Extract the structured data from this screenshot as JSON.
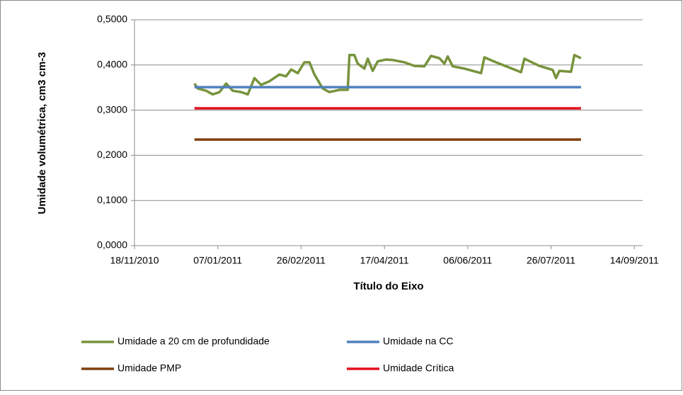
{
  "chart_data": {
    "type": "line",
    "y_label": "Umidade volumétrica, cm3 cm-3",
    "x_label": "Título do Eixo",
    "xlim": [
      "2010-11-18",
      "2011-09-19"
    ],
    "xticks": [
      {
        "value": "2010-11-18",
        "label": "18/11/2010"
      },
      {
        "value": "2011-01-07",
        "label": "07/01/2011"
      },
      {
        "value": "2011-02-26",
        "label": "26/02/2011"
      },
      {
        "value": "2011-04-17",
        "label": "17/04/2011"
      },
      {
        "value": "2011-06-06",
        "label": "06/06/2011"
      },
      {
        "value": "2011-07-26",
        "label": "26/07/2011"
      },
      {
        "value": "2011-09-14",
        "label": "14/09/2011"
      }
    ],
    "ylim": [
      0,
      0.5
    ],
    "yticks": [
      {
        "value": 0,
        "label": "0,0000"
      },
      {
        "value": 0.1,
        "label": "0,1000"
      },
      {
        "value": 0.2,
        "label": "0,2000"
      },
      {
        "value": 0.3,
        "label": "0,3000"
      },
      {
        "value": 0.4,
        "label": "0,4000"
      },
      {
        "value": 0.5,
        "label": "0,5000"
      }
    ],
    "grid": true,
    "legend": "bottom",
    "series": [
      {
        "name": "Umidade a 20 cm de profundidade",
        "color": "#77933c",
        "x": [
          "2010-12-24",
          "2010-12-26",
          "2010-12-31",
          "2011-01-04",
          "2011-01-08",
          "2011-01-12",
          "2011-01-16",
          "2011-01-21",
          "2011-01-25",
          "2011-01-29",
          "2011-02-02",
          "2011-02-07",
          "2011-02-13",
          "2011-02-17",
          "2011-02-20",
          "2011-02-24",
          "2011-02-28",
          "2011-03-03",
          "2011-03-06",
          "2011-03-11",
          "2011-03-15",
          "2011-03-21",
          "2011-03-26",
          "2011-03-27",
          "2011-03-30",
          "2011-04-01",
          "2011-04-05",
          "2011-04-07",
          "2011-04-10",
          "2011-04-13",
          "2011-04-18",
          "2011-04-22",
          "2011-04-29",
          "2011-05-05",
          "2011-05-11",
          "2011-05-15",
          "2011-05-20",
          "2011-05-23",
          "2011-05-25",
          "2011-05-28",
          "2011-06-04",
          "2011-06-14",
          "2011-06-16",
          "2011-06-23",
          "2011-07-08",
          "2011-07-10",
          "2011-07-19",
          "2011-07-27",
          "2011-07-29",
          "2011-07-31",
          "2011-08-07",
          "2011-08-09",
          "2011-08-13"
        ],
        "values": [
          0.359,
          0.348,
          0.343,
          0.335,
          0.34,
          0.359,
          0.343,
          0.34,
          0.335,
          0.371,
          0.356,
          0.364,
          0.379,
          0.375,
          0.39,
          0.382,
          0.406,
          0.406,
          0.379,
          0.348,
          0.34,
          0.345,
          0.345,
          0.422,
          0.422,
          0.403,
          0.392,
          0.414,
          0.387,
          0.408,
          0.412,
          0.411,
          0.406,
          0.398,
          0.397,
          0.42,
          0.415,
          0.403,
          0.419,
          0.397,
          0.392,
          0.382,
          0.417,
          0.406,
          0.384,
          0.414,
          0.398,
          0.389,
          0.371,
          0.387,
          0.385,
          0.422,
          0.415
        ]
      },
      {
        "name": "Umidade na CC",
        "color": "#4f81bd",
        "x": [
          "2010-12-24",
          "2011-08-13"
        ],
        "values": [
          0.351,
          0.351
        ]
      },
      {
        "name": "Umidade PMP",
        "color": "#7f3f0f",
        "x": [
          "2010-12-24",
          "2011-08-13"
        ],
        "values": [
          0.235,
          0.235
        ]
      },
      {
        "name": "Umidade Crítica",
        "color": "#e3101e",
        "x": [
          "2010-12-24",
          "2011-08-13"
        ],
        "values": [
          0.304,
          0.304
        ]
      }
    ]
  }
}
